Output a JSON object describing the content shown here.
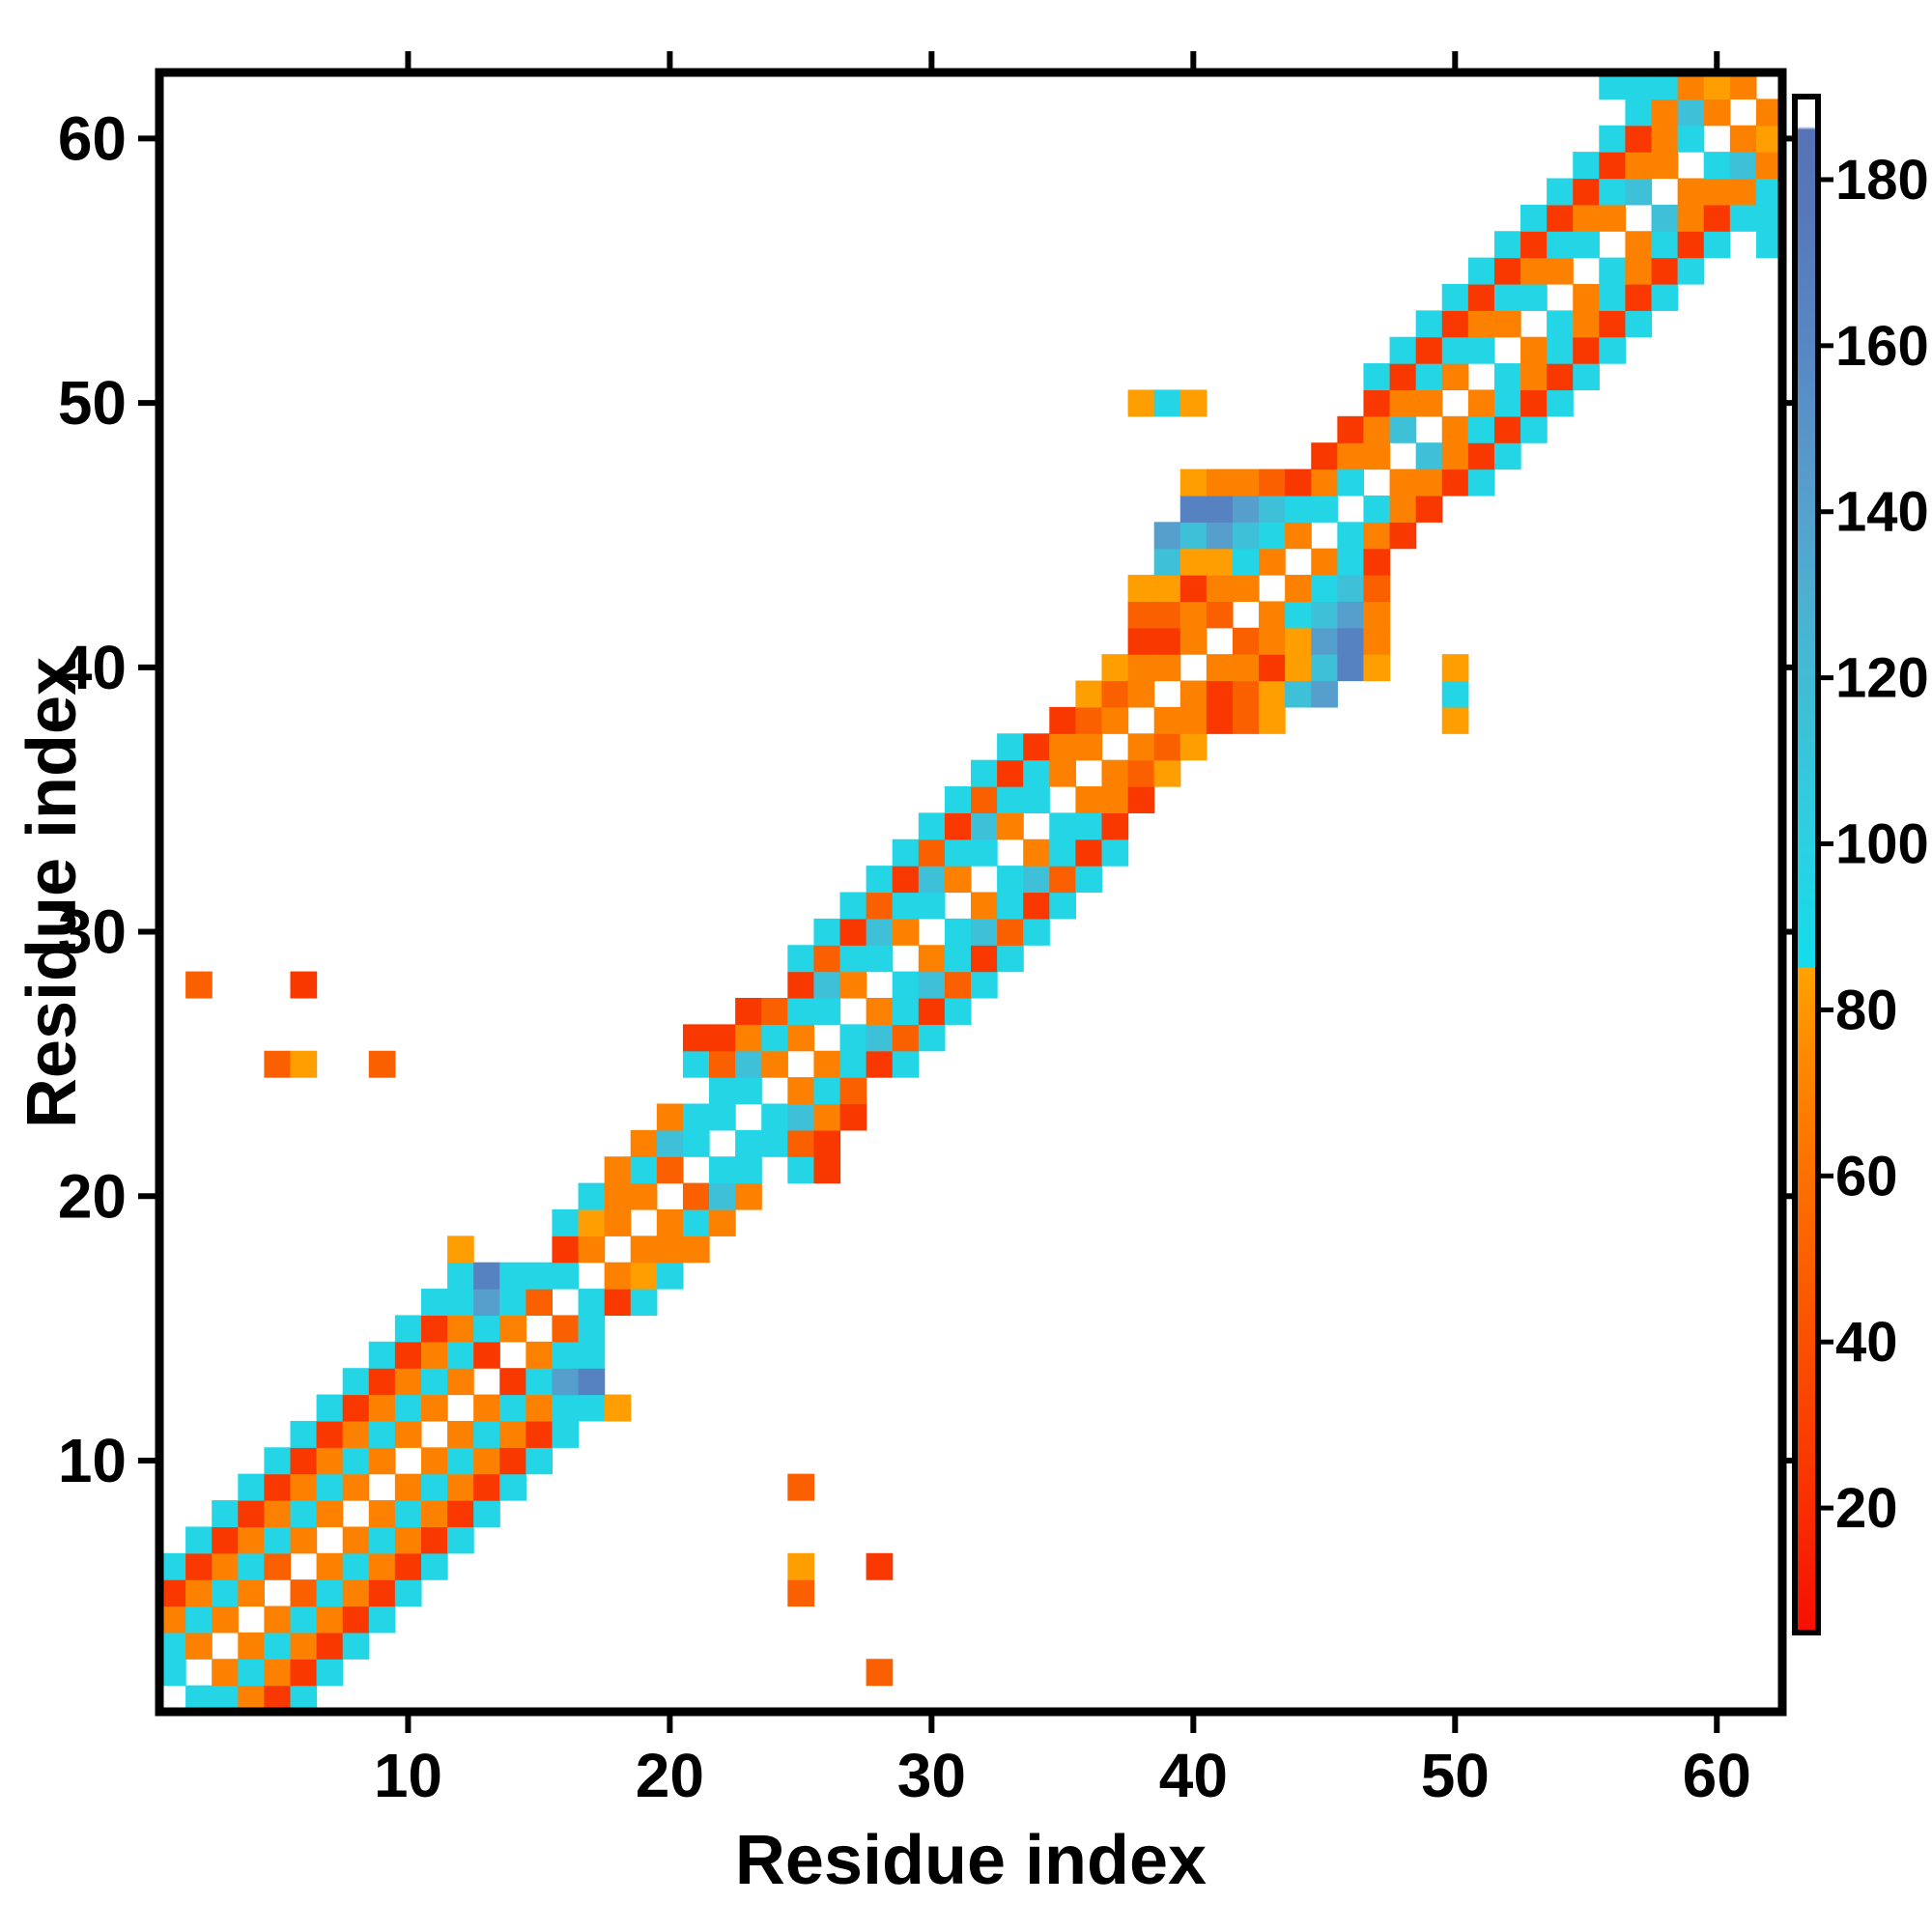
{
  "axes": {
    "x_label": "Residue index",
    "y_label": "Residue index",
    "x_ticks": [
      10,
      20,
      30,
      40,
      50,
      60
    ],
    "y_ticks": [
      10,
      20,
      30,
      40,
      50,
      60
    ],
    "n_residues": 62
  },
  "colorbar": {
    "ticks": [
      20,
      40,
      60,
      80,
      100,
      120,
      140,
      160,
      180
    ],
    "domain": [
      5,
      190
    ],
    "stops": [
      [
        5,
        "#F80E00"
      ],
      [
        25,
        "#F93800"
      ],
      [
        45,
        "#FB5800"
      ],
      [
        60,
        "#FC7000"
      ],
      [
        75,
        "#FE8A00"
      ],
      [
        85,
        "#FFA300"
      ],
      [
        85.2,
        "#14DCEC"
      ],
      [
        100,
        "#2BD1E1"
      ],
      [
        115,
        "#3DC0D8"
      ],
      [
        130,
        "#4DAFD2"
      ],
      [
        145,
        "#589ACA"
      ],
      [
        160,
        "#5887C4"
      ],
      [
        175,
        "#5679BA"
      ],
      [
        186,
        "#5772B6"
      ],
      [
        186.4,
        "#FFFFFF"
      ],
      [
        190,
        "#FFFFFF"
      ]
    ]
  },
  "chart_data": {
    "type": "heatmap",
    "title": "",
    "xlabel": "Residue index",
    "ylabel": "Residue index",
    "x_range": [
      1,
      62
    ],
    "y_range": [
      1,
      62
    ],
    "grid": false,
    "symmetric": true,
    "background_value": null,
    "value_scale": "colorbar value at each contact cell (white = no contact)",
    "contacts": [
      [
        1,
        2,
        95
      ],
      [
        1,
        3,
        95
      ],
      [
        1,
        4,
        70
      ],
      [
        1,
        5,
        25
      ],
      [
        1,
        6,
        95
      ],
      [
        2,
        3,
        70
      ],
      [
        2,
        4,
        95
      ],
      [
        2,
        5,
        70
      ],
      [
        2,
        6,
        25
      ],
      [
        2,
        7,
        95
      ],
      [
        2,
        28,
        50
      ],
      [
        3,
        4,
        70
      ],
      [
        3,
        5,
        95
      ],
      [
        3,
        6,
        70
      ],
      [
        3,
        7,
        25
      ],
      [
        3,
        8,
        95
      ],
      [
        4,
        5,
        70
      ],
      [
        4,
        6,
        95
      ],
      [
        4,
        7,
        70
      ],
      [
        4,
        8,
        25
      ],
      [
        4,
        9,
        95
      ],
      [
        5,
        6,
        50
      ],
      [
        5,
        7,
        95
      ],
      [
        5,
        8,
        70
      ],
      [
        5,
        9,
        25
      ],
      [
        5,
        10,
        95
      ],
      [
        5,
        25,
        50
      ],
      [
        6,
        7,
        70
      ],
      [
        6,
        8,
        95
      ],
      [
        6,
        9,
        70
      ],
      [
        6,
        10,
        25
      ],
      [
        6,
        11,
        95
      ],
      [
        6,
        25,
        83
      ],
      [
        6,
        28,
        25
      ],
      [
        7,
        8,
        70
      ],
      [
        7,
        9,
        95
      ],
      [
        7,
        10,
        70
      ],
      [
        7,
        11,
        25
      ],
      [
        7,
        12,
        95
      ],
      [
        8,
        9,
        70
      ],
      [
        8,
        10,
        95
      ],
      [
        8,
        11,
        70
      ],
      [
        8,
        12,
        25
      ],
      [
        8,
        13,
        95
      ],
      [
        9,
        10,
        70
      ],
      [
        9,
        11,
        95
      ],
      [
        9,
        12,
        70
      ],
      [
        9,
        13,
        25
      ],
      [
        9,
        14,
        95
      ],
      [
        9,
        25,
        50
      ],
      [
        10,
        11,
        70
      ],
      [
        10,
        12,
        95
      ],
      [
        10,
        13,
        70
      ],
      [
        10,
        14,
        25
      ],
      [
        10,
        15,
        95
      ],
      [
        11,
        12,
        70
      ],
      [
        11,
        13,
        95
      ],
      [
        11,
        14,
        70
      ],
      [
        11,
        15,
        25
      ],
      [
        11,
        16,
        95
      ],
      [
        12,
        13,
        70
      ],
      [
        12,
        14,
        95
      ],
      [
        12,
        15,
        70
      ],
      [
        12,
        16,
        95
      ],
      [
        12,
        17,
        95
      ],
      [
        12,
        18,
        83
      ],
      [
        13,
        14,
        25
      ],
      [
        13,
        15,
        95
      ],
      [
        13,
        16,
        142
      ],
      [
        13,
        17,
        165
      ],
      [
        14,
        15,
        70
      ],
      [
        14,
        16,
        95
      ],
      [
        14,
        17,
        95
      ],
      [
        15,
        16,
        50
      ],
      [
        15,
        17,
        95
      ],
      [
        16,
        17,
        95
      ],
      [
        16,
        18,
        25
      ],
      [
        16,
        19,
        95
      ],
      [
        17,
        18,
        70
      ],
      [
        17,
        19,
        83
      ],
      [
        17,
        20,
        95
      ],
      [
        18,
        19,
        70
      ],
      [
        18,
        20,
        70
      ],
      [
        18,
        21,
        70
      ],
      [
        19,
        20,
        70
      ],
      [
        19,
        21,
        95
      ],
      [
        19,
        22,
        70
      ],
      [
        20,
        21,
        50
      ],
      [
        20,
        22,
        115
      ],
      [
        20,
        23,
        70
      ],
      [
        21,
        22,
        95
      ],
      [
        21,
        23,
        95
      ],
      [
        21,
        25,
        95
      ],
      [
        21,
        26,
        25
      ],
      [
        22,
        23,
        95
      ],
      [
        22,
        24,
        95
      ],
      [
        22,
        25,
        50
      ],
      [
        22,
        26,
        25
      ],
      [
        23,
        24,
        95
      ],
      [
        23,
        25,
        115
      ],
      [
        23,
        26,
        70
      ],
      [
        23,
        27,
        25
      ],
      [
        24,
        25,
        70
      ],
      [
        24,
        26,
        95
      ],
      [
        24,
        27,
        50
      ],
      [
        25,
        26,
        70
      ],
      [
        25,
        27,
        95
      ],
      [
        25,
        28,
        25
      ],
      [
        25,
        29,
        95
      ],
      [
        26,
        27,
        95
      ],
      [
        26,
        28,
        115
      ],
      [
        26,
        29,
        50
      ],
      [
        26,
        30,
        95
      ],
      [
        27,
        28,
        70
      ],
      [
        27,
        29,
        95
      ],
      [
        27,
        30,
        25
      ],
      [
        27,
        31,
        95
      ],
      [
        28,
        29,
        95
      ],
      [
        28,
        30,
        115
      ],
      [
        28,
        31,
        50
      ],
      [
        28,
        32,
        95
      ],
      [
        29,
        30,
        70
      ],
      [
        29,
        31,
        95
      ],
      [
        29,
        32,
        25
      ],
      [
        29,
        33,
        95
      ],
      [
        30,
        31,
        95
      ],
      [
        30,
        32,
        115
      ],
      [
        30,
        33,
        50
      ],
      [
        30,
        34,
        95
      ],
      [
        31,
        32,
        70
      ],
      [
        31,
        33,
        95
      ],
      [
        31,
        34,
        25
      ],
      [
        31,
        35,
        95
      ],
      [
        32,
        33,
        95
      ],
      [
        32,
        34,
        115
      ],
      [
        32,
        35,
        50
      ],
      [
        32,
        36,
        95
      ],
      [
        33,
        34,
        70
      ],
      [
        33,
        35,
        95
      ],
      [
        33,
        36,
        25
      ],
      [
        33,
        37,
        95
      ],
      [
        34,
        35,
        95
      ],
      [
        34,
        36,
        95
      ],
      [
        34,
        37,
        25
      ],
      [
        35,
        36,
        70
      ],
      [
        35,
        37,
        70
      ],
      [
        35,
        38,
        25
      ],
      [
        36,
        37,
        70
      ],
      [
        36,
        38,
        50
      ],
      [
        36,
        39,
        83
      ],
      [
        37,
        38,
        70
      ],
      [
        37,
        39,
        50
      ],
      [
        37,
        40,
        83
      ],
      [
        38,
        39,
        70
      ],
      [
        38,
        40,
        70
      ],
      [
        38,
        41,
        25
      ],
      [
        38,
        42,
        50
      ],
      [
        38,
        43,
        83
      ],
      [
        38,
        50,
        83
      ],
      [
        39,
        40,
        70
      ],
      [
        39,
        41,
        25
      ],
      [
        39,
        42,
        50
      ],
      [
        39,
        43,
        83
      ],
      [
        39,
        44,
        115
      ],
      [
        39,
        45,
        142
      ],
      [
        39,
        50,
        95
      ],
      [
        40,
        41,
        70
      ],
      [
        40,
        42,
        70
      ],
      [
        40,
        43,
        25
      ],
      [
        40,
        44,
        83
      ],
      [
        40,
        45,
        115
      ],
      [
        40,
        46,
        165
      ],
      [
        40,
        47,
        83
      ],
      [
        40,
        50,
        83
      ],
      [
        41,
        42,
        50
      ],
      [
        41,
        43,
        70
      ],
      [
        41,
        44,
        83
      ],
      [
        41,
        45,
        142
      ],
      [
        41,
        46,
        165
      ],
      [
        41,
        47,
        70
      ],
      [
        42,
        43,
        70
      ],
      [
        42,
        44,
        95
      ],
      [
        42,
        45,
        115
      ],
      [
        42,
        46,
        142
      ],
      [
        42,
        47,
        70
      ],
      [
        43,
        44,
        70
      ],
      [
        43,
        45,
        95
      ],
      [
        43,
        46,
        115
      ],
      [
        43,
        47,
        50
      ],
      [
        44,
        45,
        70
      ],
      [
        44,
        46,
        95
      ],
      [
        44,
        47,
        25
      ],
      [
        45,
        46,
        95
      ],
      [
        45,
        47,
        70
      ],
      [
        45,
        48,
        25
      ],
      [
        46,
        47,
        95
      ],
      [
        46,
        48,
        70
      ],
      [
        46,
        49,
        25
      ],
      [
        47,
        48,
        70
      ],
      [
        47,
        49,
        70
      ],
      [
        47,
        50,
        25
      ],
      [
        47,
        51,
        95
      ],
      [
        48,
        49,
        115
      ],
      [
        48,
        50,
        70
      ],
      [
        48,
        51,
        25
      ],
      [
        48,
        52,
        95
      ],
      [
        49,
        50,
        70
      ],
      [
        49,
        51,
        95
      ],
      [
        49,
        52,
        25
      ],
      [
        49,
        53,
        95
      ],
      [
        50,
        51,
        70
      ],
      [
        50,
        52,
        95
      ],
      [
        50,
        53,
        25
      ],
      [
        50,
        54,
        95
      ],
      [
        51,
        52,
        95
      ],
      [
        51,
        53,
        70
      ],
      [
        51,
        54,
        25
      ],
      [
        51,
        55,
        95
      ],
      [
        52,
        53,
        70
      ],
      [
        52,
        54,
        95
      ],
      [
        52,
        55,
        25
      ],
      [
        52,
        56,
        95
      ],
      [
        53,
        54,
        95
      ],
      [
        53,
        55,
        70
      ],
      [
        53,
        56,
        25
      ],
      [
        53,
        57,
        95
      ],
      [
        54,
        55,
        70
      ],
      [
        54,
        56,
        95
      ],
      [
        54,
        57,
        25
      ],
      [
        54,
        58,
        95
      ],
      [
        55,
        56,
        95
      ],
      [
        55,
        57,
        70
      ],
      [
        55,
        58,
        25
      ],
      [
        55,
        59,
        95
      ],
      [
        56,
        57,
        70
      ],
      [
        56,
        58,
        95
      ],
      [
        56,
        59,
        25
      ],
      [
        56,
        60,
        95
      ],
      [
        56,
        62,
        95
      ],
      [
        57,
        58,
        115
      ],
      [
        57,
        59,
        70
      ],
      [
        57,
        60,
        25
      ],
      [
        57,
        61,
        95
      ],
      [
        57,
        62,
        95
      ],
      [
        58,
        59,
        70
      ],
      [
        58,
        60,
        70
      ],
      [
        58,
        61,
        70
      ],
      [
        58,
        62,
        95
      ],
      [
        59,
        60,
        95
      ],
      [
        59,
        61,
        115
      ],
      [
        59,
        62,
        70
      ],
      [
        60,
        61,
        70
      ],
      [
        60,
        62,
        83
      ],
      [
        61,
        62,
        70
      ]
    ]
  }
}
